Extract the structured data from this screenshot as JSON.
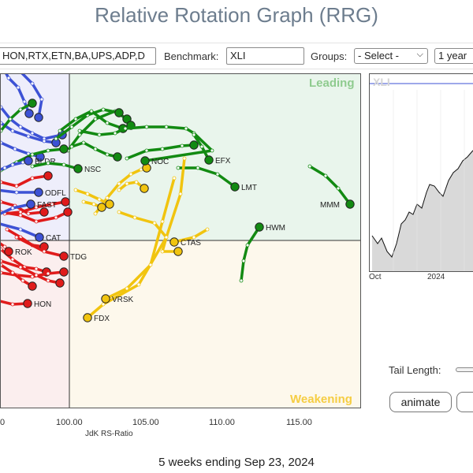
{
  "page": {
    "title": "Relative Rotation Graph (RRG)",
    "footer": "5 weeks ending Sep 23, 2024"
  },
  "toolbar": {
    "symbols_value": "HON,RTX,ETN,BA,UPS,ADP,D",
    "benchmark_label": "Benchmark:",
    "benchmark_value": "XLI",
    "groups_label": "Groups:",
    "groups_value": "- Select -",
    "period_value": "1 year"
  },
  "rrg": {
    "quadrants": {
      "leading": "Leading",
      "weakening": "Weakening"
    },
    "colors": {
      "leading_bg": "#e9f5ec",
      "weakening_bg": "#fdf8ec",
      "lagging_bg": "#fbeeee",
      "improving_bg": "#eeeefb",
      "leading_text": "#8fcb8f",
      "weakening_text": "#f5cd42",
      "green": "#128a12",
      "red": "#e01b1b",
      "blue": "#3d52d5",
      "yellow": "#f1c40f"
    },
    "x_axis": {
      "label": "JdK RS-Ratio",
      "ticks": [
        "0",
        "100.00",
        "105.00",
        "110.00",
        "115.00"
      ]
    }
  },
  "chart_data": {
    "type": "scatter",
    "xlabel": "JdK RS-Ratio",
    "x_ticks": [
      100,
      105,
      110,
      115
    ],
    "center": [
      100,
      100
    ],
    "points": [
      {
        "label": "BLDR",
        "color": "blue",
        "quadrant": "improving",
        "tail": [
          [
            -3,
            215
          ],
          [
            5,
            212
          ],
          [
            15,
            208
          ],
          [
            28,
            205
          ],
          [
            35,
            203
          ]
        ]
      },
      {
        "label": "NOC",
        "color": "green",
        "quadrant": "leading",
        "tail": [
          [
            158,
            162
          ],
          [
            185,
            160
          ],
          [
            210,
            160
          ],
          [
            235,
            162
          ],
          [
            245,
            168
          ],
          [
            268,
            190
          ],
          [
            183,
            203
          ]
        ]
      },
      {
        "label": "EFX",
        "color": "green",
        "quadrant": "leading",
        "tail": [
          [
            245,
            170
          ],
          [
            255,
            185
          ],
          [
            264,
            202
          ]
        ]
      },
      {
        "label": "NSC",
        "color": "green",
        "quadrant": "leading",
        "tail": [
          [
            40,
            210
          ],
          [
            60,
            206
          ],
          [
            80,
            208
          ],
          [
            98,
            213
          ]
        ]
      },
      {
        "label": "LMT",
        "color": "green",
        "quadrant": "leading",
        "tail": [
          [
            225,
            212
          ],
          [
            250,
            212
          ],
          [
            275,
            220
          ],
          [
            297,
            236
          ]
        ]
      },
      {
        "label": "MMM",
        "color": "green",
        "quadrant": "leading",
        "tail": [
          [
            392,
            210
          ],
          [
            412,
            222
          ],
          [
            428,
            238
          ],
          [
            443,
            258
          ]
        ]
      },
      {
        "label": "HWM",
        "color": "green",
        "quadrant": "leading",
        "tail": [
          [
            305,
            355
          ],
          [
            308,
            330
          ],
          [
            313,
            310
          ],
          [
            328,
            287
          ]
        ]
      },
      {
        "label": "FDX",
        "color": "yellow",
        "quadrant": "weakening",
        "tail": [
          [
            233,
            200
          ],
          [
            228,
            245
          ],
          [
            210,
            300
          ],
          [
            175,
            360
          ],
          [
            130,
            385
          ],
          [
            110,
            402
          ]
        ]
      },
      {
        "label": "VRSK",
        "color": "yellow",
        "quadrant": "weakening",
        "tail": [
          [
            220,
            225
          ],
          [
            205,
            280
          ],
          [
            190,
            335
          ],
          [
            160,
            365
          ],
          [
            133,
            378
          ]
        ]
      },
      {
        "label": "CTAS",
        "color": "yellow",
        "quadrant": "weakening",
        "tail": [
          [
            262,
            290
          ],
          [
            245,
            300
          ],
          [
            220,
            306
          ]
        ]
      },
      {
        "label": "FAST",
        "color": "blue",
        "quadrant": "improving",
        "tail": [
          [
            -5,
            272
          ],
          [
            15,
            263
          ],
          [
            38,
            258
          ]
        ]
      },
      {
        "label": "ODFL",
        "color": "blue",
        "quadrant": "improving",
        "tail": [
          [
            -5,
            240
          ],
          [
            20,
            243
          ],
          [
            48,
            243
          ]
        ]
      },
      {
        "label": "CAT",
        "color": "blue",
        "quadrant": "improving",
        "tail": [
          [
            -5,
            282
          ],
          [
            25,
            290
          ],
          [
            49,
            300
          ]
        ]
      },
      {
        "label": "ROK",
        "color": "red",
        "quadrant": "lagging",
        "tail": [
          [
            -5,
            305
          ],
          [
            5,
            312
          ],
          [
            10,
            318
          ]
        ]
      },
      {
        "label": "HON",
        "color": "red",
        "quadrant": "lagging",
        "tail": [
          [
            -5,
            380
          ],
          [
            15,
            385
          ],
          [
            34,
            384
          ]
        ]
      },
      {
        "label": "TDG",
        "color": "red",
        "quadrant": "lagging",
        "tail": [
          [
            20,
            300
          ],
          [
            55,
            318
          ],
          [
            80,
            324
          ]
        ]
      }
    ]
  },
  "price_chart": {
    "symbol": "XLI",
    "x_ticks": [
      "Oct",
      "2024"
    ]
  },
  "controls": {
    "tail_length_label": "Tail Length:",
    "animate_label": "animate"
  }
}
